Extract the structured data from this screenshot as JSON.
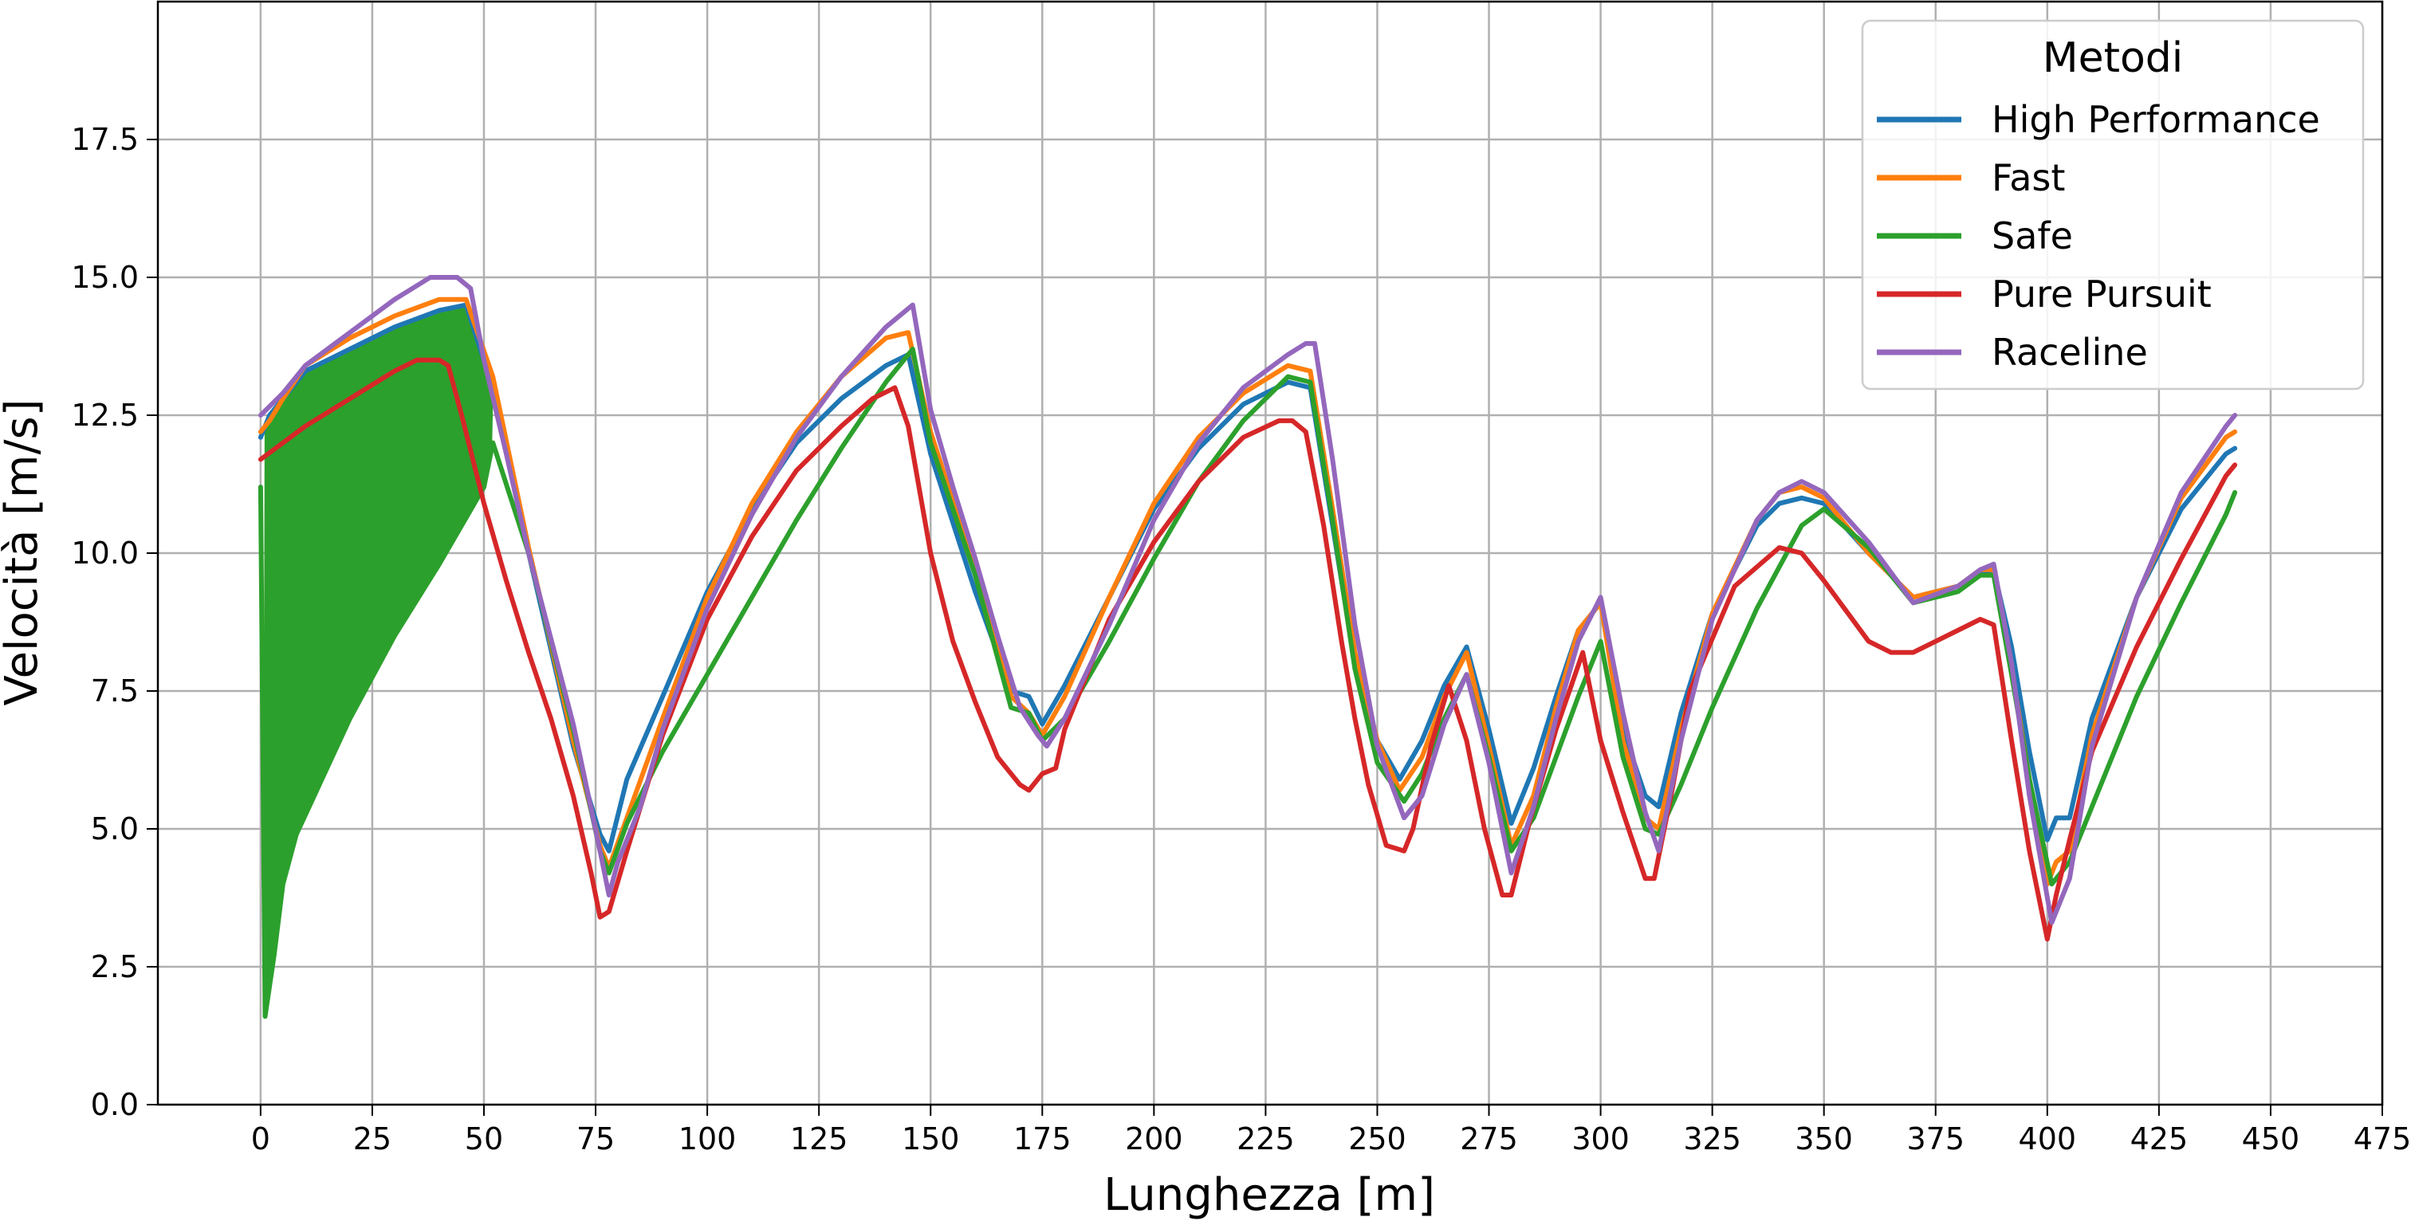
{
  "chart_data": {
    "type": "line",
    "title": "",
    "xlabel": "Lunghezza [m]",
    "ylabel": "Velocità [m/s]",
    "xlim": [
      -23,
      475
    ],
    "ylim": [
      0,
      20
    ],
    "xticks": [
      0,
      25,
      50,
      75,
      100,
      125,
      150,
      175,
      200,
      225,
      250,
      275,
      300,
      325,
      350,
      375,
      400,
      425,
      450,
      475
    ],
    "xtick_labels": [
      "0",
      "25",
      "50",
      "75",
      "100",
      "125",
      "150",
      "175",
      "200",
      "225",
      "250",
      "275",
      "300",
      "325",
      "350",
      "375",
      "400",
      "425",
      "450",
      "475"
    ],
    "yticks": [
      0,
      2.5,
      5,
      7.5,
      10,
      12.5,
      15,
      17.5
    ],
    "ytick_labels": [
      "0.0",
      "2.5",
      "5.0",
      "7.5",
      "10.0",
      "12.5",
      "15.0",
      "17.5"
    ],
    "grid": true,
    "legend": {
      "title": "Metodi",
      "position": "top-right"
    },
    "series": [
      {
        "name": "High Performance",
        "color": "#1f77b4",
        "x": [
          0,
          2,
          5,
          10,
          20,
          30,
          40,
          46,
          52,
          60,
          70,
          76,
          78,
          82,
          90,
          100,
          110,
          120,
          130,
          140,
          145,
          150,
          160,
          168,
          172,
          175,
          180,
          190,
          200,
          210,
          220,
          230,
          235,
          240,
          245,
          250,
          255,
          260,
          265,
          270,
          275,
          280,
          285,
          290,
          295,
          300,
          305,
          310,
          313,
          318,
          325,
          335,
          340,
          345,
          350,
          360,
          370,
          380,
          385,
          388,
          392,
          396,
          400,
          402,
          405,
          410,
          420,
          430,
          440,
          442
        ],
        "y": [
          12.1,
          12.5,
          12.8,
          13.3,
          13.7,
          14.1,
          14.4,
          14.5,
          13.0,
          10.0,
          6.5,
          4.9,
          4.6,
          5.9,
          7.4,
          9.3,
          10.8,
          12.0,
          12.8,
          13.4,
          13.6,
          11.8,
          9.3,
          7.5,
          7.4,
          6.9,
          7.6,
          9.2,
          10.8,
          11.9,
          12.7,
          13.1,
          13.0,
          10.5,
          8.0,
          6.6,
          5.9,
          6.6,
          7.6,
          8.3,
          6.8,
          5.1,
          6.1,
          7.4,
          8.6,
          9.1,
          6.8,
          5.6,
          5.4,
          7.1,
          8.9,
          10.5,
          10.9,
          11.0,
          10.9,
          10.0,
          9.2,
          9.4,
          9.6,
          9.7,
          8.3,
          6.4,
          4.8,
          5.2,
          5.2,
          7.0,
          9.2,
          10.8,
          11.8,
          11.9
        ]
      },
      {
        "name": "Fast",
        "color": "#ff7f0e",
        "x": [
          0,
          2,
          5,
          10,
          20,
          30,
          40,
          46,
          52,
          60,
          70,
          76,
          78,
          82,
          90,
          100,
          110,
          120,
          130,
          140,
          145,
          150,
          160,
          168,
          172,
          175,
          180,
          190,
          200,
          210,
          220,
          230,
          235,
          240,
          245,
          250,
          255,
          260,
          265,
          270,
          275,
          280,
          285,
          290,
          295,
          300,
          305,
          310,
          313,
          318,
          325,
          335,
          340,
          345,
          350,
          360,
          370,
          380,
          385,
          388,
          392,
          396,
          400,
          402,
          405,
          410,
          420,
          430,
          440,
          442
        ],
        "y": [
          12.2,
          12.4,
          12.8,
          13.4,
          13.9,
          14.3,
          14.6,
          14.6,
          13.2,
          10.1,
          6.6,
          4.7,
          4.3,
          5.2,
          7.0,
          9.2,
          10.9,
          12.2,
          13.2,
          13.9,
          14.0,
          12.2,
          9.7,
          7.4,
          7.1,
          6.7,
          7.4,
          9.2,
          10.9,
          12.1,
          12.9,
          13.4,
          13.3,
          10.8,
          8.2,
          6.6,
          5.7,
          6.3,
          7.4,
          8.2,
          6.5,
          4.7,
          5.6,
          7.2,
          8.6,
          9.1,
          6.6,
          5.2,
          5.0,
          6.8,
          8.9,
          10.6,
          11.1,
          11.2,
          11.0,
          10.0,
          9.2,
          9.4,
          9.7,
          9.7,
          7.9,
          5.9,
          4.0,
          4.4,
          4.6,
          6.7,
          9.2,
          11.0,
          12.1,
          12.2
        ]
      },
      {
        "name": "Safe",
        "color": "#2ca02c",
        "x": [
          0,
          1,
          3,
          5,
          8,
          12,
          20,
          30,
          40,
          45,
          50,
          52,
          60,
          70,
          76,
          78,
          82,
          90,
          100,
          110,
          120,
          130,
          140,
          146,
          150,
          160,
          168,
          172,
          175,
          180,
          190,
          200,
          210,
          220,
          230,
          235,
          240,
          245,
          250,
          256,
          260,
          265,
          270,
          275,
          280,
          285,
          290,
          295,
          300,
          305,
          310,
          313,
          318,
          325,
          335,
          345,
          350,
          360,
          370,
          380,
          385,
          388,
          392,
          396,
          401,
          405,
          410,
          420,
          430,
          440,
          442
        ],
        "y": [
          11.2,
          1.6,
          2.7,
          4.0,
          4.9,
          5.6,
          7.0,
          8.5,
          9.8,
          10.5,
          11.2,
          12.0,
          10.0,
          6.8,
          4.6,
          4.2,
          5.1,
          6.4,
          7.8,
          9.2,
          10.6,
          11.9,
          13.1,
          13.7,
          12.0,
          9.6,
          7.2,
          7.1,
          6.6,
          7.0,
          8.4,
          9.9,
          11.3,
          12.4,
          13.2,
          13.1,
          10.6,
          7.9,
          6.2,
          5.5,
          6.0,
          7.0,
          7.8,
          6.3,
          4.6,
          5.2,
          6.3,
          7.4,
          8.4,
          6.3,
          5.0,
          4.9,
          5.8,
          7.2,
          9.0,
          10.5,
          10.8,
          10.1,
          9.1,
          9.3,
          9.6,
          9.6,
          7.8,
          5.9,
          4.0,
          4.4,
          5.4,
          7.4,
          9.1,
          10.7,
          11.1
        ]
      },
      {
        "name": "Pure Pursuit",
        "color": "#d62728",
        "x": [
          0,
          5,
          10,
          20,
          30,
          35,
          40,
          42,
          45,
          50,
          55,
          60,
          65,
          70,
          74,
          76,
          78,
          82,
          90,
          100,
          110,
          120,
          130,
          137,
          142,
          145,
          150,
          155,
          160,
          165,
          170,
          172,
          175,
          178,
          180,
          190,
          200,
          210,
          220,
          228,
          231,
          234,
          238,
          242,
          245,
          248,
          252,
          256,
          258,
          262,
          266,
          270,
          274,
          278,
          280,
          284,
          290,
          296,
          300,
          305,
          310,
          312,
          316,
          320,
          330,
          340,
          345,
          350,
          360,
          365,
          370,
          375,
          385,
          388,
          392,
          396,
          400,
          402,
          405,
          410,
          420,
          430,
          440,
          442
        ],
        "y": [
          11.7,
          12.0,
          12.3,
          12.8,
          13.3,
          13.5,
          13.5,
          13.4,
          12.5,
          10.9,
          9.5,
          8.2,
          7.0,
          5.6,
          4.2,
          3.4,
          3.5,
          4.6,
          6.7,
          8.8,
          10.3,
          11.5,
          12.3,
          12.8,
          13.0,
          12.3,
          10.0,
          8.4,
          7.3,
          6.3,
          5.8,
          5.7,
          6.0,
          6.1,
          6.8,
          8.8,
          10.2,
          11.3,
          12.1,
          12.4,
          12.4,
          12.2,
          10.5,
          8.4,
          7.0,
          5.8,
          4.7,
          4.6,
          5.0,
          6.5,
          7.6,
          6.6,
          5.0,
          3.8,
          3.8,
          5.1,
          6.8,
          8.2,
          6.6,
          5.3,
          4.1,
          4.1,
          5.7,
          7.5,
          9.4,
          10.1,
          10.0,
          9.5,
          8.4,
          8.2,
          8.2,
          8.4,
          8.8,
          8.7,
          6.6,
          4.6,
          3.0,
          3.8,
          4.8,
          6.4,
          8.3,
          9.9,
          11.4,
          11.6
        ]
      },
      {
        "name": "Raceline",
        "color": "#9467bd",
        "x": [
          0,
          5,
          10,
          20,
          30,
          38,
          44,
          47,
          50,
          55,
          60,
          70,
          76,
          78,
          80,
          85,
          90,
          100,
          110,
          120,
          130,
          140,
          146,
          150,
          155,
          160,
          165,
          170,
          174,
          176,
          180,
          190,
          200,
          210,
          220,
          230,
          234,
          236,
          240,
          245,
          250,
          256,
          260,
          265,
          270,
          275,
          280,
          285,
          290,
          295,
          300,
          305,
          310,
          313,
          318,
          325,
          335,
          340,
          345,
          350,
          360,
          370,
          380,
          385,
          388,
          392,
          396,
          401,
          405,
          410,
          420,
          430,
          440,
          442
        ],
        "y": [
          12.5,
          12.9,
          13.4,
          14.0,
          14.6,
          15.0,
          15.0,
          14.8,
          13.5,
          11.8,
          10.0,
          6.9,
          4.6,
          3.8,
          4.4,
          5.4,
          6.8,
          9.0,
          10.7,
          12.1,
          13.2,
          14.1,
          14.5,
          12.6,
          11.2,
          9.9,
          8.5,
          7.2,
          6.7,
          6.5,
          7.0,
          8.7,
          10.6,
          12.0,
          13.0,
          13.6,
          13.8,
          13.8,
          11.7,
          8.7,
          6.5,
          5.2,
          5.6,
          6.9,
          7.8,
          6.2,
          4.2,
          5.4,
          7.0,
          8.4,
          9.2,
          7.1,
          5.3,
          4.6,
          6.6,
          8.8,
          10.6,
          11.1,
          11.3,
          11.1,
          10.2,
          9.1,
          9.4,
          9.7,
          9.8,
          8.0,
          5.6,
          3.3,
          4.1,
          6.5,
          9.2,
          11.1,
          12.3,
          12.5
        ]
      }
    ]
  }
}
